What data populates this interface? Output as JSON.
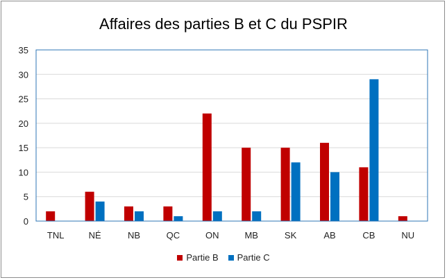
{
  "chart_data": {
    "type": "bar",
    "title": "Affaires des parties B et C du PSPIR",
    "xlabel": "",
    "ylabel": "",
    "categories": [
      "TNL",
      "NÉ",
      "NB",
      "QC",
      "ON",
      "MB",
      "SK",
      "AB",
      "CB",
      "NU"
    ],
    "series": [
      {
        "name": "Partie B",
        "color": "#c00000",
        "values": [
          2,
          6,
          3,
          3,
          22,
          15,
          15,
          16,
          11,
          1
        ]
      },
      {
        "name": "Partie C",
        "color": "#0070c0",
        "values": [
          0,
          4,
          2,
          1,
          2,
          2,
          12,
          10,
          29,
          0
        ]
      }
    ],
    "ylim": [
      0,
      35
    ],
    "yticks": [
      "0",
      "5",
      "10",
      "15",
      "20",
      "25",
      "30",
      "35"
    ],
    "grid": true,
    "legend": "bottom"
  }
}
